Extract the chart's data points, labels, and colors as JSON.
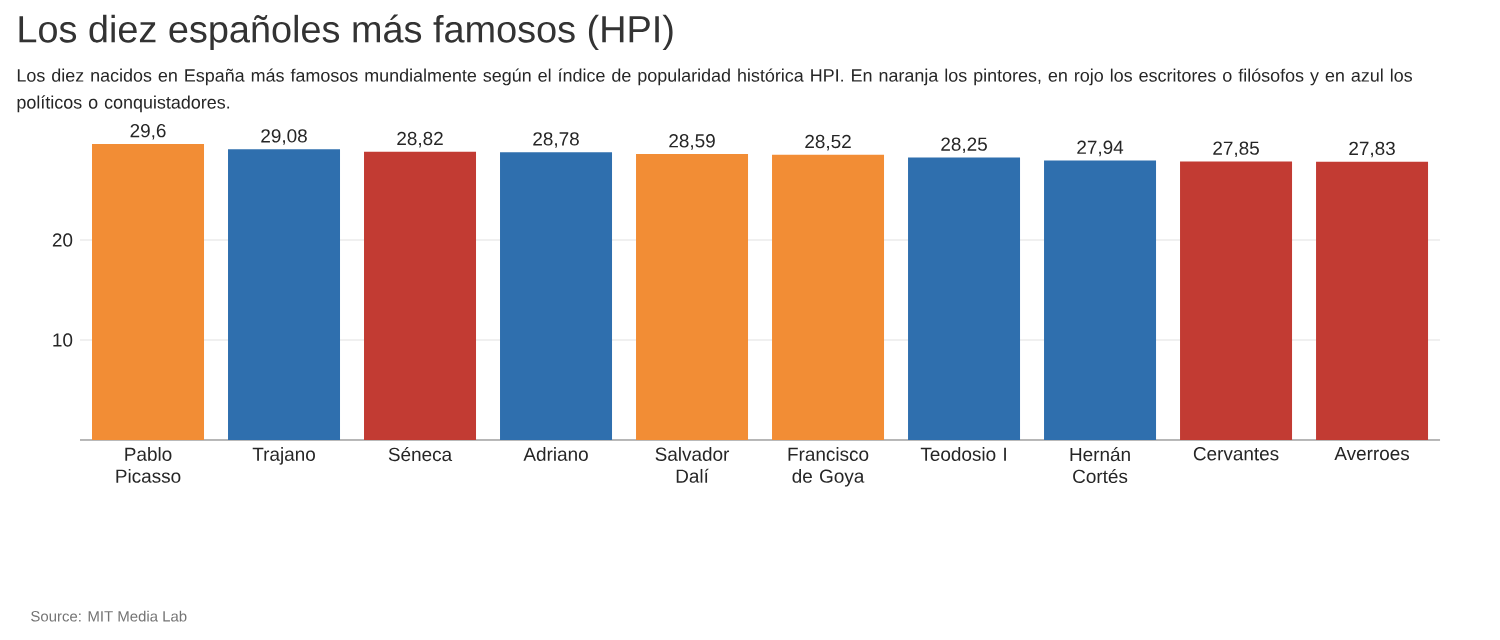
{
  "chart_data": {
    "type": "bar",
    "title": "Los diez españoles más famosos (HPI)",
    "subtitle": "Los diez nacidos en España más famosos mundialmente según el índice de popularidad histórica HPI. En naranja los pintores, en rojo los escritores o filósofos y en azul los políticos o conquistadores.",
    "categories": [
      "Pablo Picasso",
      "Trajano",
      "Séneca",
      "Adriano",
      "Salvador Dalí",
      "Francisco de Goya",
      "Teodosio I",
      "Hernán Cortés",
      "Cervantes",
      "Averroes"
    ],
    "values": [
      29.6,
      29.08,
      28.82,
      28.78,
      28.59,
      28.52,
      28.25,
      27.94,
      27.85,
      27.83
    ],
    "value_labels": [
      "29,6",
      "29,08",
      "28,82",
      "28,78",
      "28,59",
      "28,52",
      "28,25",
      "27,94",
      "27,85",
      "27,83"
    ],
    "colors": [
      "#f28d35",
      "#2f6fae",
      "#c23b33",
      "#2f6fae",
      "#f28d35",
      "#f28d35",
      "#2f6fae",
      "#2f6fae",
      "#c23b33",
      "#c23b33"
    ],
    "ylim": [
      0,
      30
    ],
    "yticks": [
      10,
      20
    ],
    "grid": "y",
    "annotations": [
      "Source: MIT Media Lab"
    ]
  }
}
